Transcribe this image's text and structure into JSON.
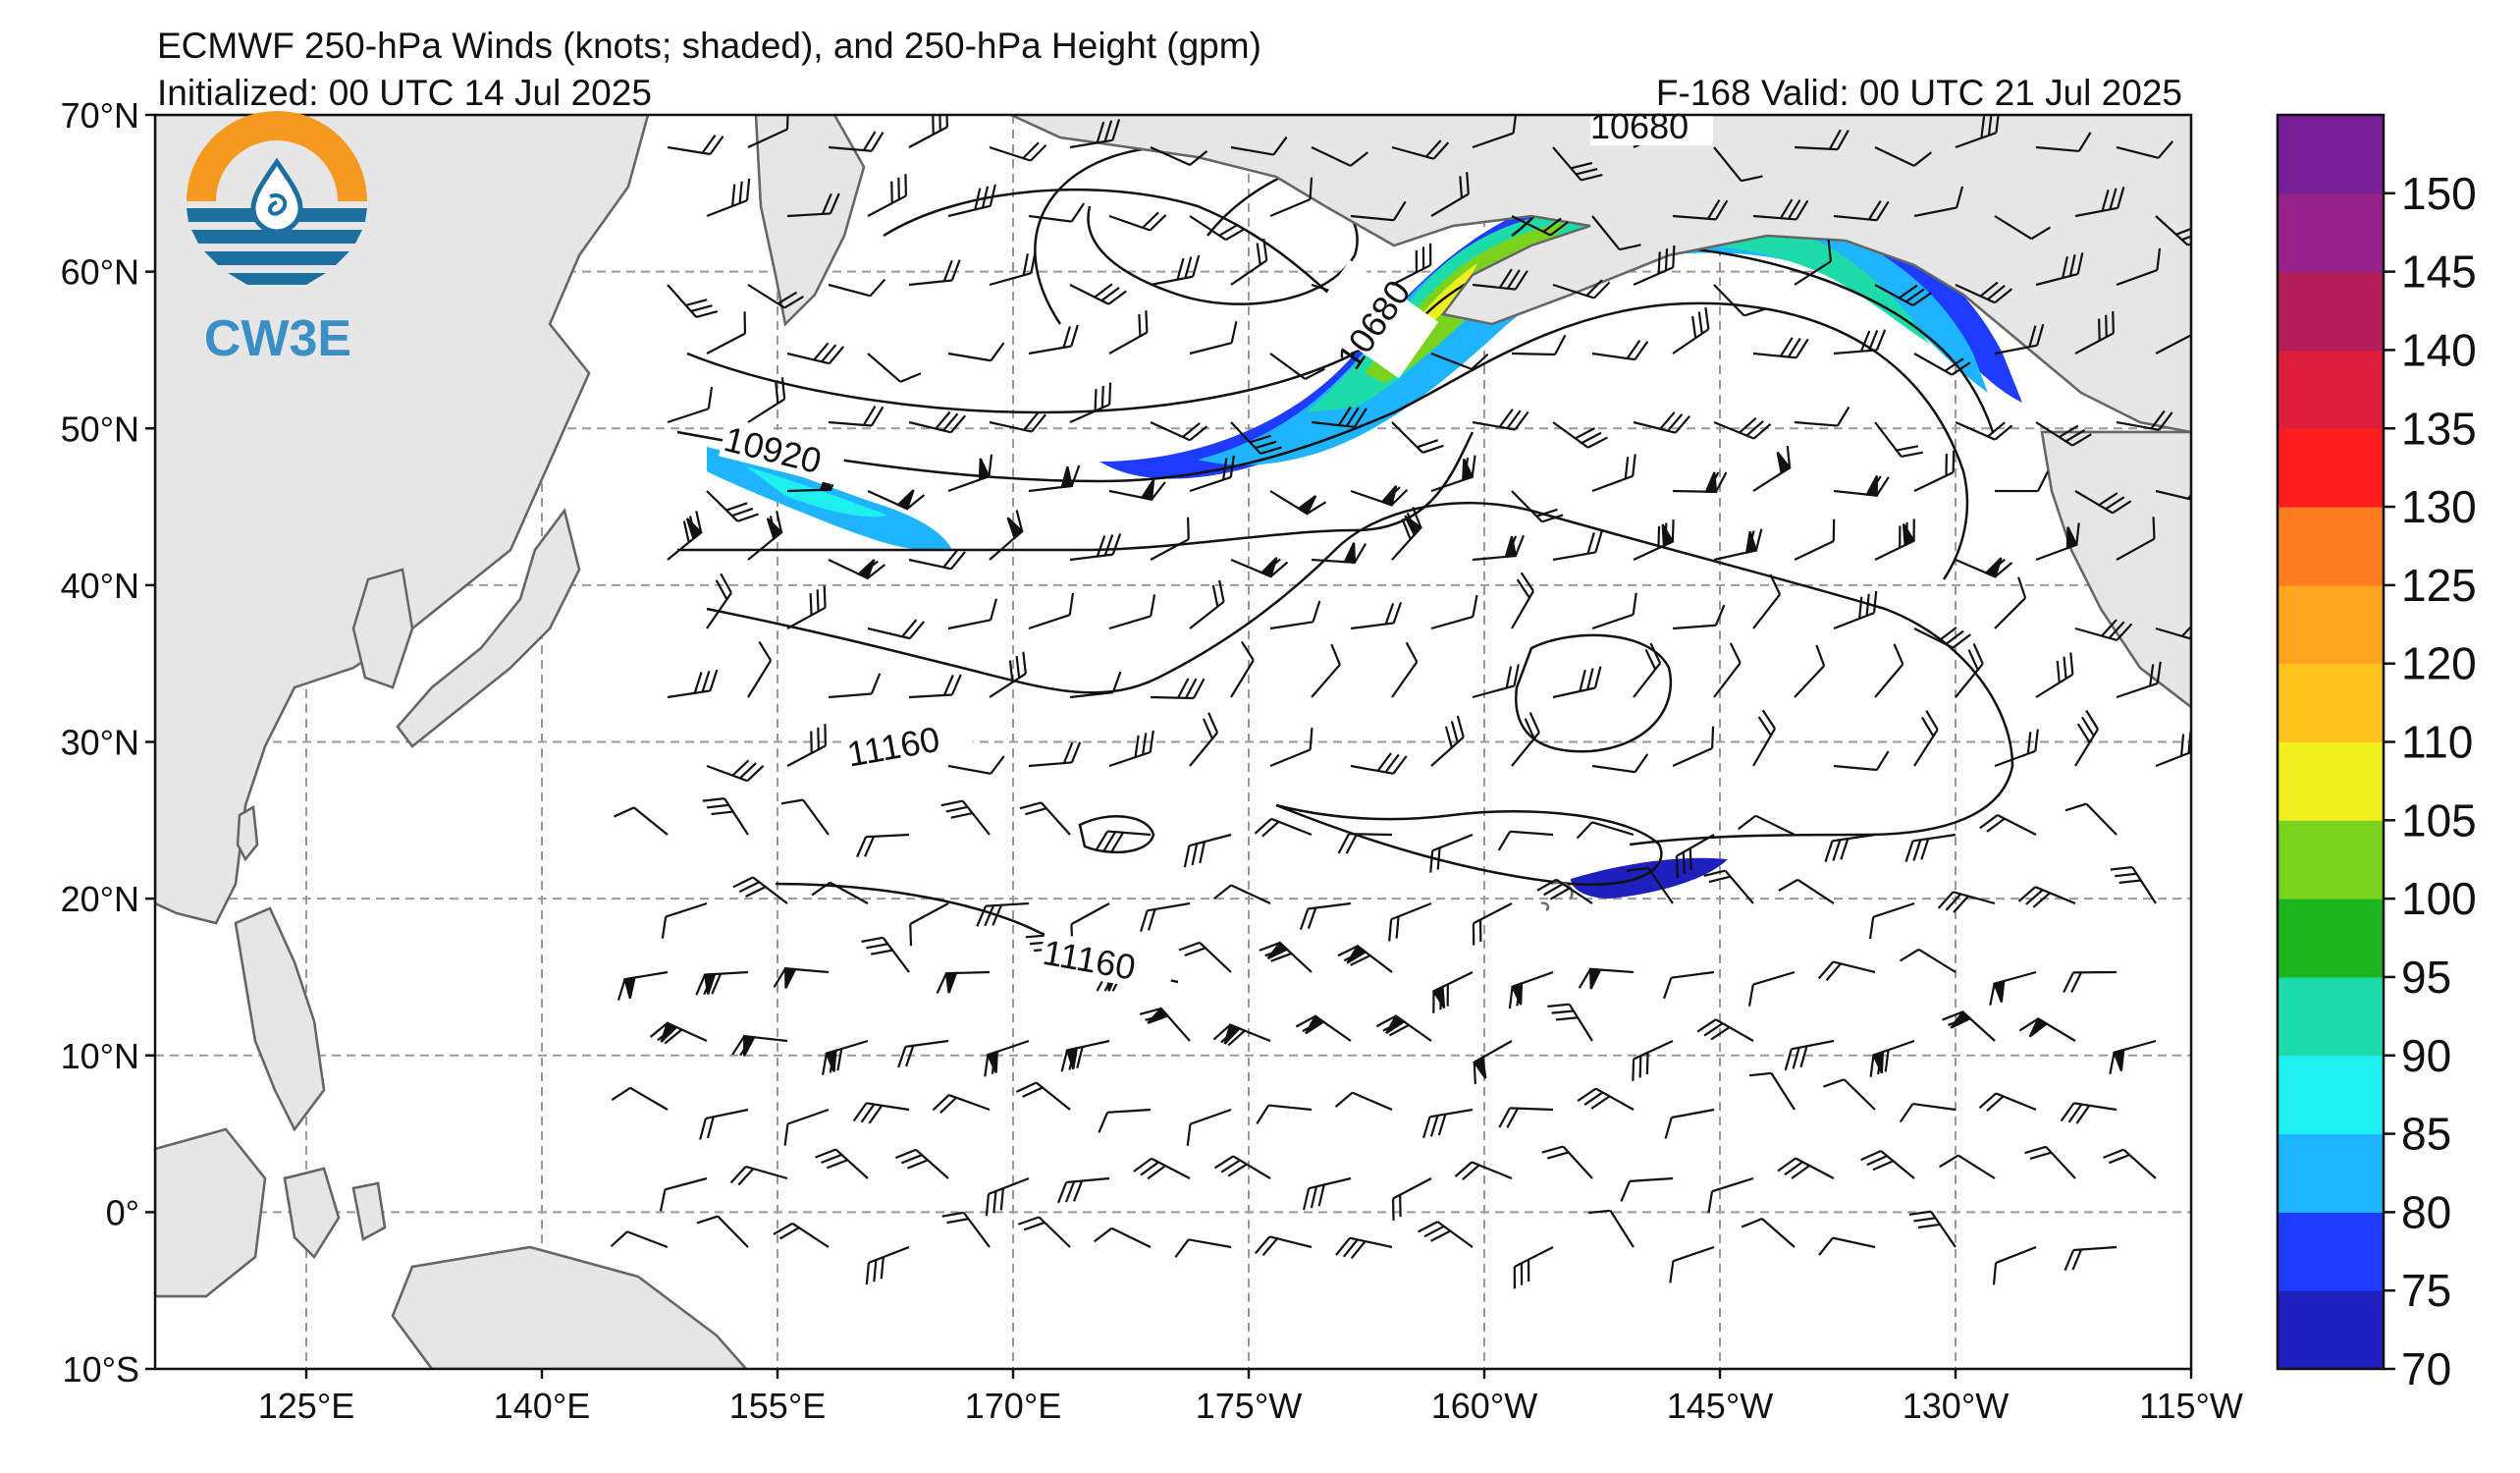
{
  "header": {
    "title": "ECMWF 250-hPa Winds (knots; shaded), and 250-hPa Height (gpm)",
    "initialized": "Initialized: 00 UTC 14 Jul 2025",
    "valid": "F-168  Valid: 00 UTC 21 Jul 2025"
  },
  "logo": {
    "text": "CW3E",
    "colors": {
      "ring": "#f59a1f",
      "waves": "#1d6f9f",
      "text": "#3b8fc4"
    }
  },
  "map": {
    "lat_labels": [
      "70°N",
      "60°N",
      "50°N",
      "40°N",
      "30°N",
      "20°N",
      "10°N",
      "0°",
      "10°S"
    ],
    "lon_labels": [
      "125°E",
      "140°E",
      "155°E",
      "170°E",
      "175°W",
      "160°W",
      "145°W",
      "130°W",
      "115°W"
    ],
    "contour_labels": [
      "10680",
      "10680",
      "10920",
      "11160",
      "11160"
    ],
    "land_color": "#e6e6e6",
    "coast_color": "#666666",
    "grid_color": "#999999"
  },
  "colorbar": {
    "ticks": [
      "70",
      "75",
      "80",
      "85",
      "90",
      "95",
      "100",
      "105",
      "110",
      "120",
      "125",
      "130",
      "135",
      "140",
      "145",
      "150"
    ],
    "colors": [
      "#1f1fbf",
      "#1e3cff",
      "#1eb4ff",
      "#1ef0f0",
      "#1edcaa",
      "#1eb41e",
      "#78d21e",
      "#f0f01e",
      "#ffc31e",
      "#ffa51e",
      "#ff7d1e",
      "#ff1e1e",
      "#dc1e3c",
      "#b41e5a",
      "#96238c",
      "#781e96"
    ]
  }
}
